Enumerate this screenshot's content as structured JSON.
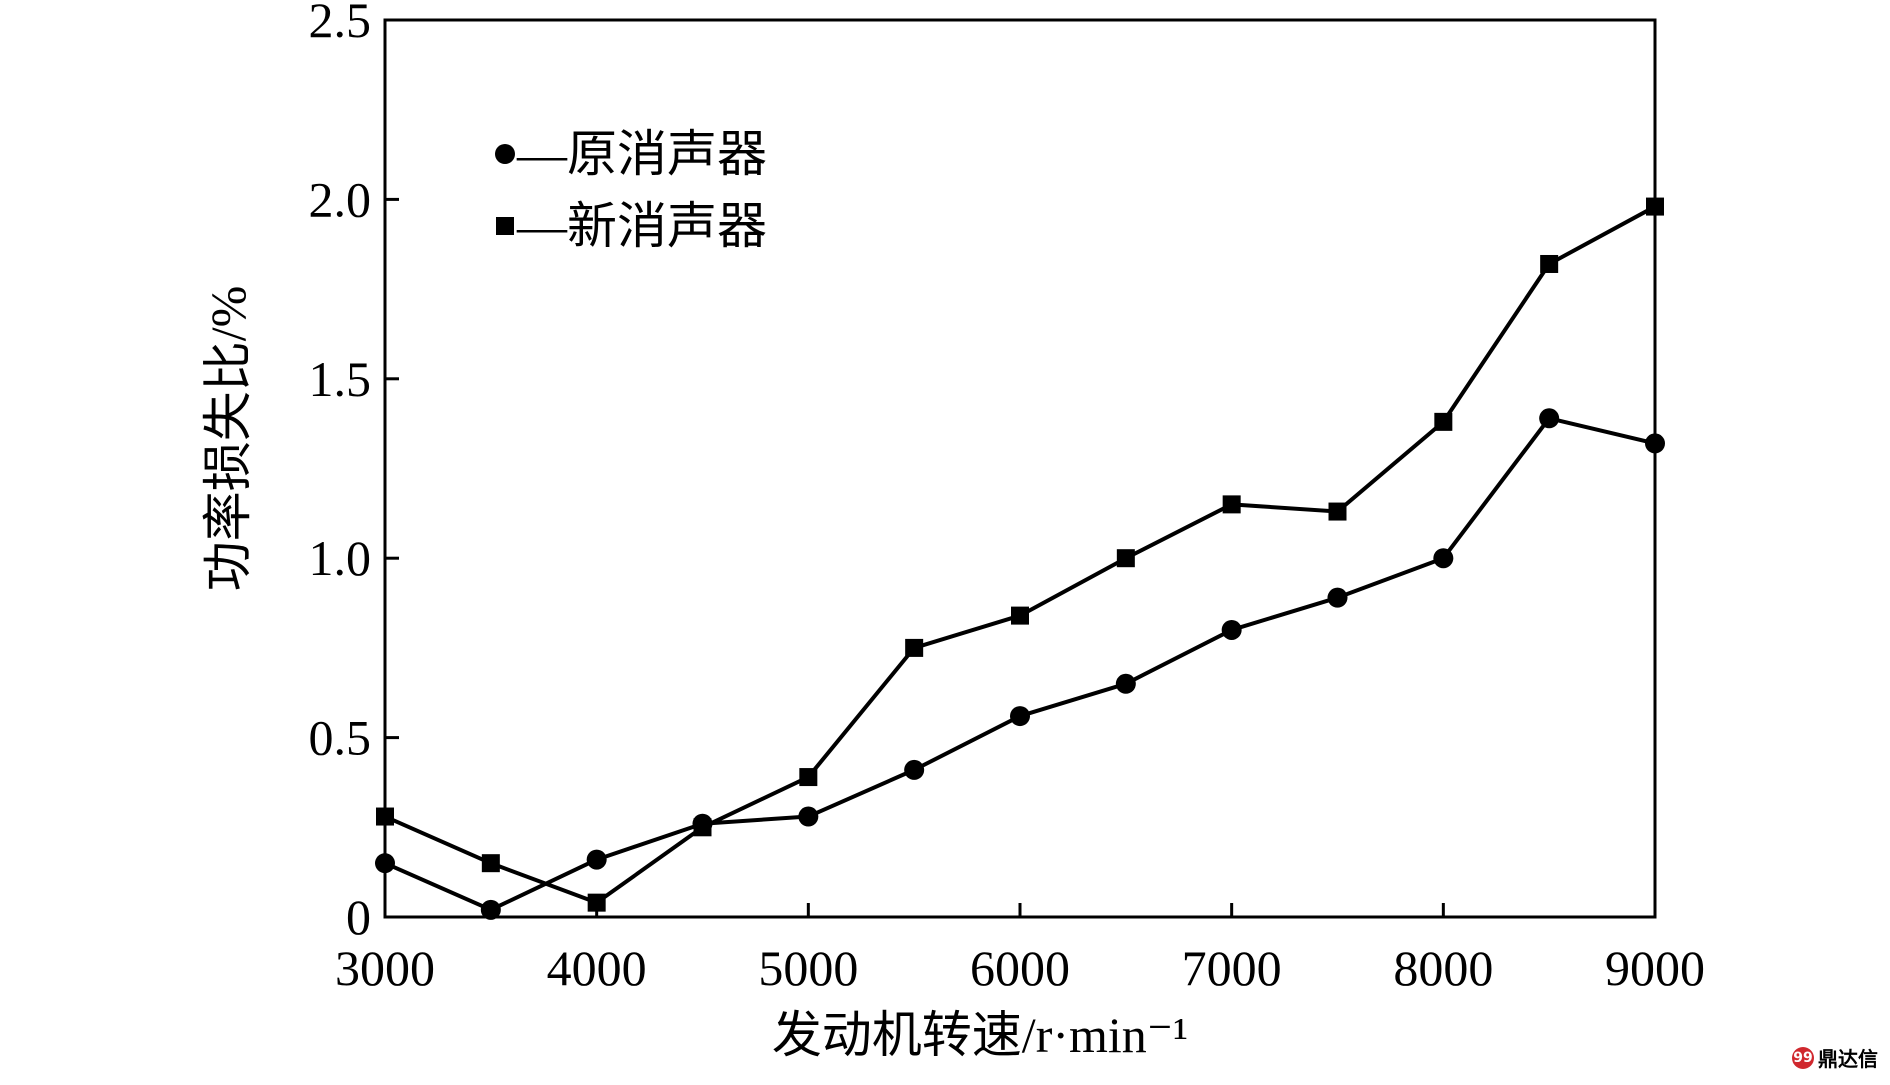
{
  "chart_data": {
    "type": "line",
    "title": "",
    "xlabel": "发动机转速/r·min⁻¹",
    "ylabel": "功率损失比/%",
    "x": [
      3000,
      3500,
      4000,
      4500,
      5000,
      5500,
      6000,
      6500,
      7000,
      7500,
      8000,
      8500,
      9000
    ],
    "xlim": [
      3000,
      9000
    ],
    "ylim": [
      0,
      2.5
    ],
    "xticks": [
      3000,
      4000,
      5000,
      6000,
      7000,
      8000,
      9000
    ],
    "xtick_labels": [
      "3000",
      "4000",
      "5000",
      "6000",
      "7000",
      "8000",
      "9000"
    ],
    "yticks": [
      0,
      0.5,
      1.0,
      1.5,
      2.0,
      2.5
    ],
    "ytick_labels": [
      "0",
      "0.5",
      "1.0",
      "1.5",
      "2.0",
      "2.5"
    ],
    "grid": false,
    "legend_position": "top-left",
    "series": [
      {
        "name": "原消声器",
        "legend_label": "—原消声器",
        "marker": "circle",
        "color": "#000000",
        "values": [
          0.15,
          0.02,
          0.16,
          0.26,
          0.28,
          0.41,
          0.56,
          0.65,
          0.8,
          0.89,
          1.0,
          1.39,
          1.32
        ]
      },
      {
        "name": "新消声器",
        "legend_label": "—新消声器",
        "marker": "square",
        "color": "#000000",
        "values": [
          0.28,
          0.15,
          0.04,
          0.25,
          0.39,
          0.75,
          0.84,
          1.0,
          1.15,
          1.13,
          1.38,
          1.82,
          1.98
        ]
      }
    ]
  },
  "watermark": {
    "text": "鼎达信",
    "icon": "chat-bubble-icon",
    "icon_glyph": "99",
    "color": "#d0282e"
  }
}
